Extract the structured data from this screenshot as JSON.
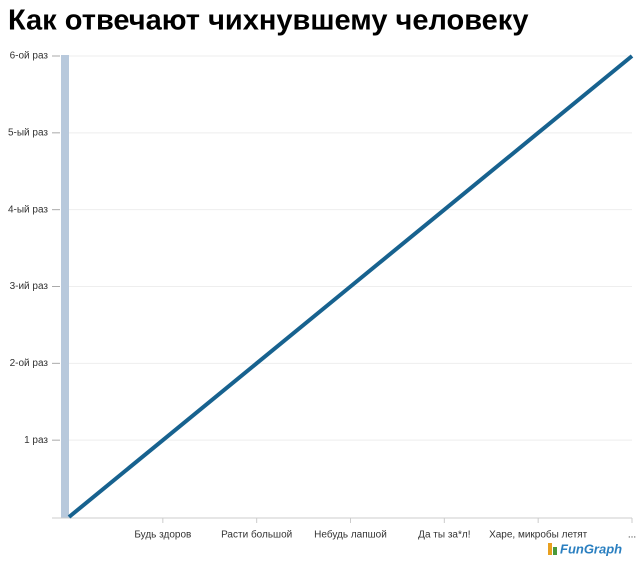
{
  "chart_data": {
    "type": "line",
    "title": "Как отвечают чихнувшему человеку",
    "x": [
      0,
      1,
      2,
      3,
      4,
      5,
      6
    ],
    "series": [
      {
        "color": "#17628f",
        "values": [
          0,
          1,
          2,
          3,
          4,
          5,
          6
        ]
      }
    ],
    "xlim": [
      0,
      6
    ],
    "xticks": [
      {
        "value": 1,
        "label": "Будь здоров"
      },
      {
        "value": 2,
        "label": "Расти большой"
      },
      {
        "value": 3,
        "label": "Небудь лапшой"
      },
      {
        "value": 4,
        "label": "Да ты за*л!"
      },
      {
        "value": 5,
        "label": "Харе, микробы летят"
      },
      {
        "value": 6,
        "label": "..."
      }
    ],
    "ylim": [
      0,
      6
    ],
    "yticks": [
      {
        "value": 1,
        "label": "1 раз"
      },
      {
        "value": 2,
        "label": "2-ой раз"
      },
      {
        "value": 3,
        "label": "3-ий раз"
      },
      {
        "value": 4,
        "label": "4-ый раз"
      },
      {
        "value": 5,
        "label": "5-ый раз"
      },
      {
        "value": 6,
        "label": "6-ой раз"
      }
    ],
    "grid": true,
    "watermark": "FunGraph"
  }
}
